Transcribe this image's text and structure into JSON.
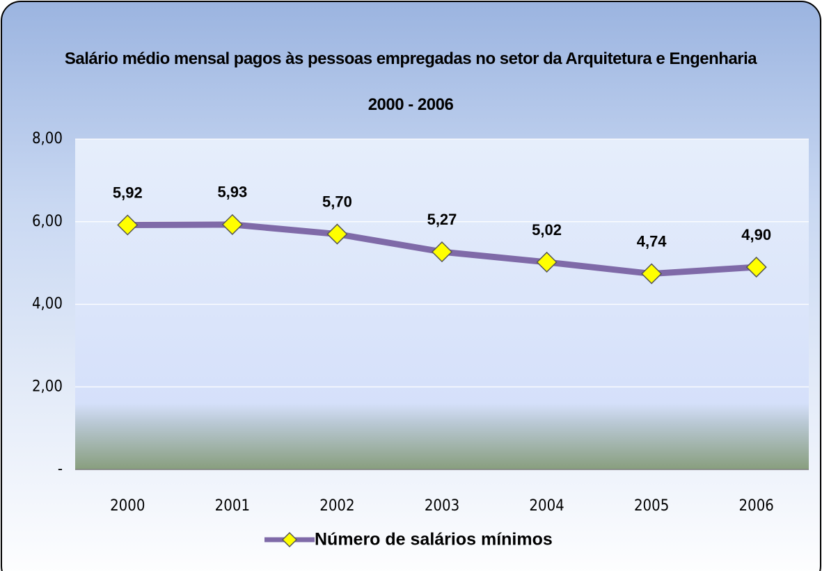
{
  "chart_data": {
    "type": "line",
    "title": "Salário médio mensal pagos às pessoas empregadas no setor da Arquitetura e Engenharia  2000 - 2006",
    "categories": [
      "2000",
      "2001",
      "2002",
      "2003",
      "2004",
      "2005",
      "2006"
    ],
    "series": [
      {
        "name": "Número de salários mínimos",
        "color": "#7f6aa8",
        "marker_color": "#ffff00",
        "values": [
          5.92,
          5.93,
          5.7,
          5.27,
          5.02,
          4.74,
          4.9
        ],
        "value_labels": [
          "5,92",
          "5,93",
          "5,70",
          "5,27",
          "5,02",
          "4,74",
          "4,90"
        ]
      }
    ],
    "ylim": [
      0,
      8
    ],
    "yticks": [
      {
        "value": 0,
        "label": "-"
      },
      {
        "value": 2,
        "label": "2,00"
      },
      {
        "value": 4,
        "label": "4,00"
      },
      {
        "value": 6,
        "label": "6,00"
      },
      {
        "value": 8,
        "label": "8,00"
      }
    ],
    "grid": true,
    "legend": "bottom"
  }
}
